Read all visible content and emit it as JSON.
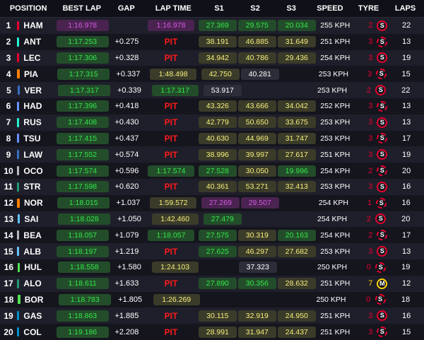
{
  "headers": {
    "position": "POSITION",
    "best_lap": "BEST LAP",
    "gap": "GAP",
    "lap_time": "LAP TIME",
    "s1": "S1",
    "s2": "S2",
    "s3": "S3",
    "speed": "SPEED",
    "tyre": "TYRE",
    "laps": "LAPS"
  },
  "colors": {
    "background": "#15151e",
    "personal_best_green": "#33e84a",
    "overall_best_purple": "#d65ae6",
    "sector_yellow": "#f5f07a",
    "pit_red": "#ff1a1a",
    "soft_tyre_red": "#e8002d",
    "medium_tyre_yellow": "#ffd500"
  },
  "rows": [
    {
      "pos": "1",
      "driver": "HAM",
      "team_color": "#e8002d",
      "best": "1:16.978",
      "best_c": "p",
      "gap": "",
      "lap": "1:16.978",
      "lap_c": "p",
      "s1": "27.369",
      "s1_c": "g",
      "s2": "29.575",
      "s2_c": "g",
      "s3": "20.034",
      "s3_c": "g",
      "speed": "255 KPH",
      "tyre_age": "2",
      "tyre": "S",
      "tyre_icon": "soft-tyre-icon",
      "laps": "22"
    },
    {
      "pos": "2",
      "driver": "ANT",
      "team_color": "#27f4d2",
      "best": "1:17.253",
      "best_c": "g",
      "gap": "+0.275",
      "lap": "PIT",
      "lap_c": "pit",
      "s1": "38.191",
      "s1_c": "y",
      "s2": "46.885",
      "s2_c": "y",
      "s3": "31.649",
      "s3_c": "y",
      "speed": "251 KPH",
      "tyre_age": "3",
      "tyre": "S",
      "tyre_icon": "soft-tyre-icon",
      "laps": "13"
    },
    {
      "pos": "3",
      "driver": "LEC",
      "team_color": "#e8002d",
      "best": "1:17.306",
      "best_c": "g",
      "gap": "+0.328",
      "lap": "PIT",
      "lap_c": "pit",
      "s1": "34.942",
      "s1_c": "y",
      "s2": "40.786",
      "s2_c": "y",
      "s3": "29.436",
      "s3_c": "y",
      "speed": "254 KPH",
      "tyre_age": "3",
      "tyre": "S",
      "tyre_icon": "soft-tyre-icon",
      "laps": "19"
    },
    {
      "pos": "4",
      "driver": "PIA",
      "team_color": "#ff8000",
      "best": "1:17.315",
      "best_c": "g",
      "gap": "+0.337",
      "lap": "1:48.498",
      "lap_c": "y",
      "s1": "42.750",
      "s1_c": "y",
      "s2": "40.281",
      "s2_c": "w",
      "s3": "",
      "s3_c": "",
      "speed": "253 KPH",
      "tyre_age": "3",
      "tyre": "S",
      "tyre_icon": "soft-tyre-icon",
      "laps": "15"
    },
    {
      "pos": "5",
      "driver": "VER",
      "team_color": "#3671c6",
      "best": "1:17.317",
      "best_c": "g",
      "gap": "+0.339",
      "lap": "1:17.317",
      "lap_c": "g",
      "s1": "53.917",
      "s1_c": "w",
      "s2": "",
      "s2_c": "",
      "s3": "",
      "s3_c": "",
      "speed": "253 KPH",
      "tyre_age": "2",
      "tyre": "S",
      "tyre_icon": "soft-tyre-icon",
      "laps": "22"
    },
    {
      "pos": "6",
      "driver": "HAD",
      "team_color": "#6692ff",
      "best": "1:17.396",
      "best_c": "g",
      "gap": "+0.418",
      "lap": "PIT",
      "lap_c": "pit",
      "s1": "43.326",
      "s1_c": "y",
      "s2": "43.666",
      "s2_c": "y",
      "s3": "34.042",
      "s3_c": "y",
      "speed": "252 KPH",
      "tyre_age": "3",
      "tyre": "S",
      "tyre_icon": "soft-tyre-icon",
      "laps": "13"
    },
    {
      "pos": "7",
      "driver": "RUS",
      "team_color": "#27f4d2",
      "best": "1:17.408",
      "best_c": "g",
      "gap": "+0.430",
      "lap": "PIT",
      "lap_c": "pit",
      "s1": "42.779",
      "s1_c": "y",
      "s2": "50.650",
      "s2_c": "y",
      "s3": "33.675",
      "s3_c": "y",
      "speed": "253 KPH",
      "tyre_age": "3",
      "tyre": "S",
      "tyre_icon": "soft-tyre-icon",
      "laps": "13"
    },
    {
      "pos": "8",
      "driver": "TSU",
      "team_color": "#6692ff",
      "best": "1:17.415",
      "best_c": "g",
      "gap": "+0.437",
      "lap": "PIT",
      "lap_c": "pit",
      "s1": "40.630",
      "s1_c": "y",
      "s2": "44.969",
      "s2_c": "y",
      "s3": "31.747",
      "s3_c": "y",
      "speed": "253 KPH",
      "tyre_age": "3",
      "tyre": "S",
      "tyre_icon": "soft-tyre-icon",
      "laps": "17"
    },
    {
      "pos": "9",
      "driver": "LAW",
      "team_color": "#3671c6",
      "best": "1:17.552",
      "best_c": "g",
      "gap": "+0.574",
      "lap": "PIT",
      "lap_c": "pit",
      "s1": "38.996",
      "s1_c": "y",
      "s2": "39.997",
      "s2_c": "y",
      "s3": "27.617",
      "s3_c": "y",
      "speed": "251 KPH",
      "tyre_age": "3",
      "tyre": "S",
      "tyre_icon": "soft-tyre-icon",
      "laps": "19"
    },
    {
      "pos": "10",
      "driver": "OCO",
      "team_color": "#b6babd",
      "best": "1:17.574",
      "best_c": "g",
      "gap": "+0.596",
      "lap": "1:17.574",
      "lap_c": "g",
      "s1": "27.528",
      "s1_c": "g",
      "s2": "30.050",
      "s2_c": "y",
      "s3": "19.996",
      "s3_c": "g",
      "speed": "254 KPH",
      "tyre_age": "2",
      "tyre": "S",
      "tyre_icon": "soft-tyre-icon",
      "laps": "20"
    },
    {
      "pos": "11",
      "driver": "STR",
      "team_color": "#229971",
      "best": "1:17.598",
      "best_c": "g",
      "gap": "+0.620",
      "lap": "PIT",
      "lap_c": "pit",
      "s1": "40.361",
      "s1_c": "y",
      "s2": "53.271",
      "s2_c": "y",
      "s3": "32.413",
      "s3_c": "y",
      "speed": "253 KPH",
      "tyre_age": "3",
      "tyre": "S",
      "tyre_icon": "soft-tyre-icon",
      "laps": "16"
    },
    {
      "pos": "12",
      "driver": "NOR",
      "team_color": "#ff8000",
      "best": "1:18.015",
      "best_c": "g",
      "gap": "+1.037",
      "lap": "1:59.572",
      "lap_c": "y",
      "s1": "27.269",
      "s1_c": "p",
      "s2": "29.507",
      "s2_c": "p",
      "s3": "",
      "s3_c": "",
      "speed": "254 KPH",
      "tyre_age": "1",
      "tyre": "S",
      "tyre_icon": "soft-tyre-icon",
      "laps": "16"
    },
    {
      "pos": "13",
      "driver": "SAI",
      "team_color": "#64c4ff",
      "best": "1:18.028",
      "best_c": "g",
      "gap": "+1.050",
      "lap": "1:42.460",
      "lap_c": "y",
      "s1": "27.479",
      "s1_c": "g",
      "s2": "",
      "s2_c": "",
      "s3": "",
      "s3_c": "",
      "speed": "254 KPH",
      "tyre_age": "2",
      "tyre": "S",
      "tyre_icon": "soft-tyre-icon",
      "laps": "20"
    },
    {
      "pos": "14",
      "driver": "BEA",
      "team_color": "#b6babd",
      "best": "1:18.057",
      "best_c": "g",
      "gap": "+1.079",
      "lap": "1:18.057",
      "lap_c": "g",
      "s1": "27.575",
      "s1_c": "g",
      "s2": "30.319",
      "s2_c": "y",
      "s3": "20.163",
      "s3_c": "g",
      "speed": "254 KPH",
      "tyre_age": "2",
      "tyre": "S",
      "tyre_icon": "soft-tyre-icon",
      "laps": "17"
    },
    {
      "pos": "15",
      "driver": "ALB",
      "team_color": "#64c4ff",
      "best": "1:18.197",
      "best_c": "g",
      "gap": "+1.219",
      "lap": "PIT",
      "lap_c": "pit",
      "s1": "27.625",
      "s1_c": "g",
      "s2": "46.297",
      "s2_c": "y",
      "s3": "27.682",
      "s3_c": "y",
      "speed": "253 KPH",
      "tyre_age": "3",
      "tyre": "S",
      "tyre_icon": "soft-tyre-icon",
      "laps": "13"
    },
    {
      "pos": "16",
      "driver": "HUL",
      "team_color": "#52e252",
      "best": "1:18.558",
      "best_c": "g",
      "gap": "+1.580",
      "lap": "1:24.103",
      "lap_c": "y",
      "s1": "",
      "s1_c": "",
      "s2": "37.323",
      "s2_c": "w",
      "s3": "",
      "s3_c": "",
      "speed": "250 KPH",
      "tyre_age": "0",
      "tyre": "S",
      "tyre_icon": "soft-tyre-icon",
      "laps": "19"
    },
    {
      "pos": "17",
      "driver": "ALO",
      "team_color": "#229971",
      "best": "1:18.611",
      "best_c": "g",
      "gap": "+1.633",
      "lap": "PIT",
      "lap_c": "pit",
      "s1": "27.890",
      "s1_c": "g",
      "s2": "30.356",
      "s2_c": "g",
      "s3": "28.632",
      "s3_c": "y",
      "speed": "251 KPH",
      "tyre_age": "7",
      "tyre": "M",
      "tyre_icon": "medium-tyre-icon",
      "laps": "12"
    },
    {
      "pos": "18",
      "driver": "BOR",
      "team_color": "#52e252",
      "best": "1:18.783",
      "best_c": "g",
      "gap": "+1.805",
      "lap": "1:26.269",
      "lap_c": "y",
      "s1": "",
      "s1_c": "",
      "s2": "",
      "s2_c": "",
      "s3": "",
      "s3_c": "",
      "speed": "250 KPH",
      "tyre_age": "0",
      "tyre": "S",
      "tyre_icon": "soft-tyre-icon",
      "laps": "18"
    },
    {
      "pos": "19",
      "driver": "GAS",
      "team_color": "#0093cc",
      "best": "1:18.863",
      "best_c": "g",
      "gap": "+1.885",
      "lap": "PIT",
      "lap_c": "pit",
      "s1": "30.115",
      "s1_c": "y",
      "s2": "32.919",
      "s2_c": "y",
      "s3": "24.950",
      "s3_c": "y",
      "speed": "251 KPH",
      "tyre_age": "3",
      "tyre": "S",
      "tyre_icon": "soft-tyre-icon",
      "laps": "16"
    },
    {
      "pos": "20",
      "driver": "COL",
      "team_color": "#0093cc",
      "best": "1:19.186",
      "best_c": "g",
      "gap": "+2.208",
      "lap": "PIT",
      "lap_c": "pit",
      "s1": "28.991",
      "s1_c": "y",
      "s2": "31.947",
      "s2_c": "y",
      "s3": "24.437",
      "s3_c": "y",
      "speed": "251 KPH",
      "tyre_age": "3",
      "tyre": "S",
      "tyre_icon": "soft-tyre-icon",
      "laps": "15"
    }
  ]
}
